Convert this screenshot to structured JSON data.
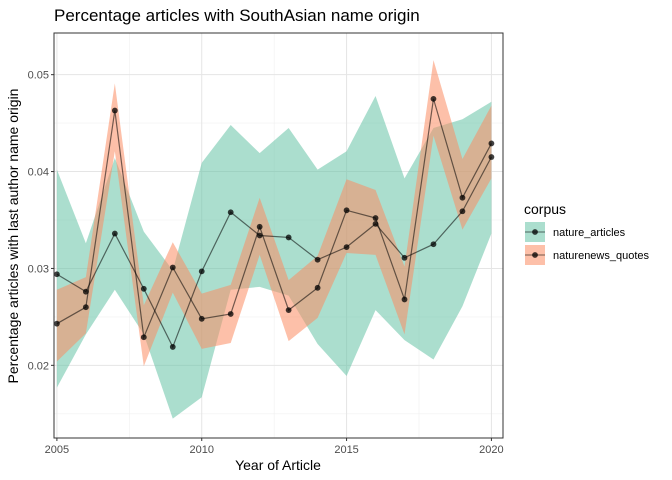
{
  "chart_data": {
    "type": "line",
    "title": "Percentage articles with SouthAsian name origin",
    "xlabel": "Year of Article",
    "ylabel": "Percentage articles with last author name origin",
    "xlim": [
      2004.9,
      2020.4
    ],
    "ylim": [
      0.0125,
      0.0543
    ],
    "x_ticks": [
      2005,
      2010,
      2015,
      2020
    ],
    "y_ticks": [
      0.02,
      0.03,
      0.04,
      0.05
    ],
    "y_tick_labels": [
      "0.02",
      "0.03",
      "0.04",
      "0.05"
    ],
    "grid": true,
    "legend": {
      "title": "corpus",
      "placement": "right"
    },
    "series": [
      {
        "name": "nature_articles",
        "color": "#1b9e77",
        "ribbon_color": "#66c2a5",
        "x": [
          2005,
          2006,
          2007,
          2008,
          2009,
          2010,
          2011,
          2012,
          2013,
          2014,
          2015,
          2016,
          2017,
          2018,
          2019,
          2020
        ],
        "values": [
          0.0294,
          0.0276,
          0.0336,
          0.0279,
          0.0219,
          0.0297,
          0.0358,
          0.0334,
          0.0332,
          0.0309,
          0.0322,
          0.0346,
          0.0311,
          0.0325,
          0.0359,
          0.0415
        ],
        "lower": [
          0.0177,
          0.0232,
          0.0278,
          0.0232,
          0.0145,
          0.0167,
          0.0278,
          0.0281,
          0.0272,
          0.0222,
          0.0189,
          0.0257,
          0.0226,
          0.0206,
          0.0261,
          0.0336
        ],
        "upper": [
          0.0402,
          0.0326,
          0.0414,
          0.0338,
          0.0298,
          0.0409,
          0.0448,
          0.0419,
          0.0445,
          0.0402,
          0.0421,
          0.0478,
          0.0393,
          0.0445,
          0.0454,
          0.0472
        ]
      },
      {
        "name": "naturenews_quotes",
        "color": "#d95f02",
        "ribbon_color": "#fc8d62",
        "x": [
          2005,
          2006,
          2007,
          2008,
          2009,
          2010,
          2011,
          2012,
          2013,
          2014,
          2015,
          2016,
          2017,
          2018,
          2019,
          2020
        ],
        "values": [
          0.0243,
          0.026,
          0.0463,
          0.0229,
          0.0301,
          0.0248,
          0.0253,
          0.0343,
          0.0257,
          0.028,
          0.036,
          0.0352,
          0.0268,
          0.0475,
          0.0373,
          0.0429
        ],
        "lower": [
          0.0204,
          0.0233,
          0.0421,
          0.0199,
          0.0275,
          0.0217,
          0.0223,
          0.0314,
          0.0225,
          0.0249,
          0.0316,
          0.0314,
          0.0232,
          0.0437,
          0.034,
          0.0393
        ],
        "upper": [
          0.0278,
          0.0291,
          0.0491,
          0.0262,
          0.0327,
          0.0274,
          0.0283,
          0.0373,
          0.0288,
          0.0313,
          0.0392,
          0.0381,
          0.0302,
          0.0515,
          0.0413,
          0.0468
        ]
      }
    ]
  }
}
